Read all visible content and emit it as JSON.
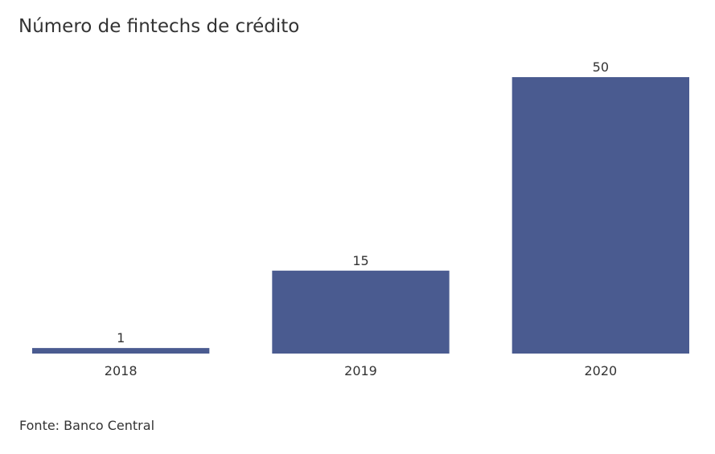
{
  "chart_data": {
    "type": "bar",
    "title": "Número de fintechs de crédito",
    "categories": [
      "2018",
      "2019",
      "2020"
    ],
    "values": [
      1,
      15,
      50
    ],
    "data_labels": [
      "1",
      "15",
      "50"
    ],
    "xlabel": "",
    "ylabel": "",
    "ylim": [
      0,
      50
    ],
    "grid": false,
    "legend": "none",
    "bar_color": "#4a5b90",
    "source": "Fonte: Banco Central"
  }
}
